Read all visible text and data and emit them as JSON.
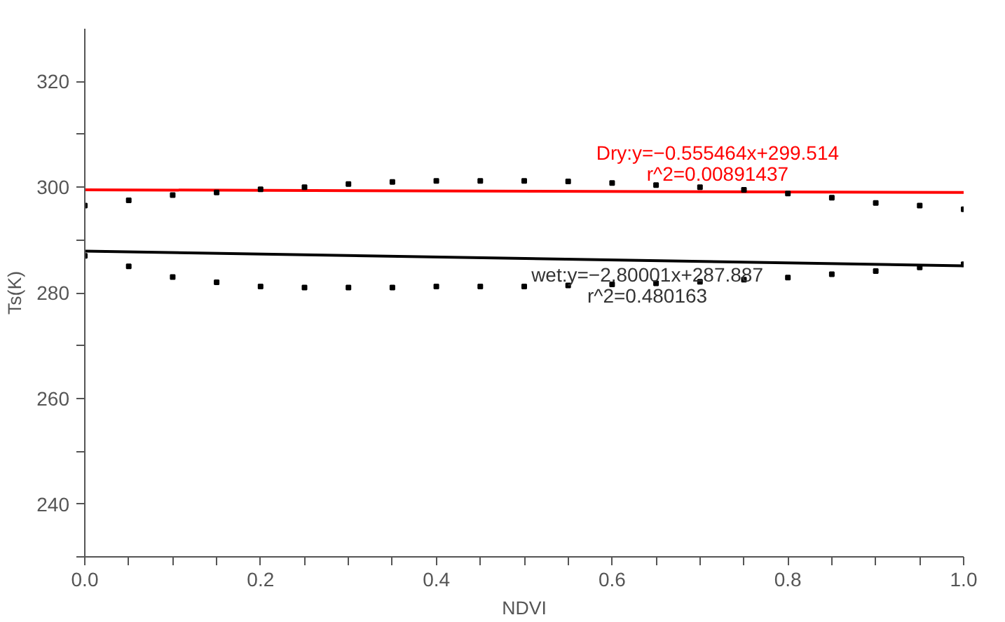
{
  "chart_data": {
    "type": "scatter",
    "xlabel": "NDVI",
    "ylabel": "Ts(K)",
    "xlim": [
      0,
      1
    ],
    "ylim": [
      230,
      330
    ],
    "xticks": [
      {
        "value": 0,
        "label": "0.0"
      },
      {
        "value": 0.05,
        "label": null
      },
      {
        "value": 0.1,
        "label": null
      },
      {
        "value": 0.15,
        "label": null
      },
      0.2,
      {
        "value": 0.25,
        "label": null
      },
      {
        "value": 0.3,
        "label": null
      },
      {
        "value": 0.35,
        "label": null
      },
      0.4,
      {
        "value": 0.45,
        "label": null
      },
      {
        "value": 0.5,
        "label": null
      },
      {
        "value": 0.55,
        "label": null
      },
      0.6,
      {
        "value": 0.65,
        "label": null
      },
      {
        "value": 0.7,
        "label": null
      },
      {
        "value": 0.75,
        "label": null
      },
      0.8,
      {
        "value": 0.85,
        "label": null
      },
      {
        "value": 0.9,
        "label": null
      },
      {
        "value": 0.95,
        "label": null
      },
      {
        "value": 1,
        "label": "1.0"
      }
    ],
    "yticks": [
      {
        "value": 230,
        "label": null
      },
      240,
      {
        "value": 250,
        "label": null
      },
      260,
      {
        "value": 270,
        "label": null
      },
      280,
      {
        "value": 290,
        "label": null
      },
      300,
      {
        "value": 310,
        "label": null
      },
      320
    ],
    "grid": false,
    "series": [
      {
        "color": "#000000",
        "marker": "square",
        "x": [
          0,
          0.05,
          0.1,
          0.15,
          0.2,
          0.25,
          0.3,
          0.35,
          0.4,
          0.45,
          0.5,
          0.55,
          0.6,
          0.65,
          0.7,
          0.75,
          0.8,
          0.85,
          0.9,
          0.95,
          1.0,
          0,
          0.05,
          0.1,
          0.15,
          0.2,
          0.25,
          0.3,
          0.35,
          0.4,
          0.45,
          0.5,
          0.55,
          0.6,
          0.65,
          0.7,
          0.75,
          0.8,
          0.85,
          0.9,
          0.95,
          1.0
        ],
        "values": [
          296.5,
          297.5,
          298.5,
          299,
          299.6,
          300,
          300.6,
          301,
          301.2,
          301.2,
          301.2,
          301.1,
          300.8,
          300.4,
          300,
          299.5,
          298.8,
          298,
          297,
          296.5,
          295.8,
          287,
          285,
          283,
          282,
          281.2,
          281,
          281,
          281,
          281.2,
          281.2,
          281.2,
          281.4,
          281.6,
          281.8,
          282.1,
          282.5,
          282.9,
          283.5,
          284.1,
          284.8,
          285.4
        ]
      },
      {
        "type": "line",
        "color": "#ff0000",
        "x": [
          0,
          1
        ],
        "values": [
          299.5,
          299.0
        ]
      },
      {
        "type": "line",
        "color": "#000000",
        "x": [
          0,
          1
        ],
        "values": [
          287.9,
          285.1
        ]
      }
    ],
    "annotations": [
      "Dry:y=−0.555464x+299.514",
      "r^2=0.00891437",
      "wet:y=−2.80001x+287.887",
      "r^2=0.480163"
    ]
  }
}
